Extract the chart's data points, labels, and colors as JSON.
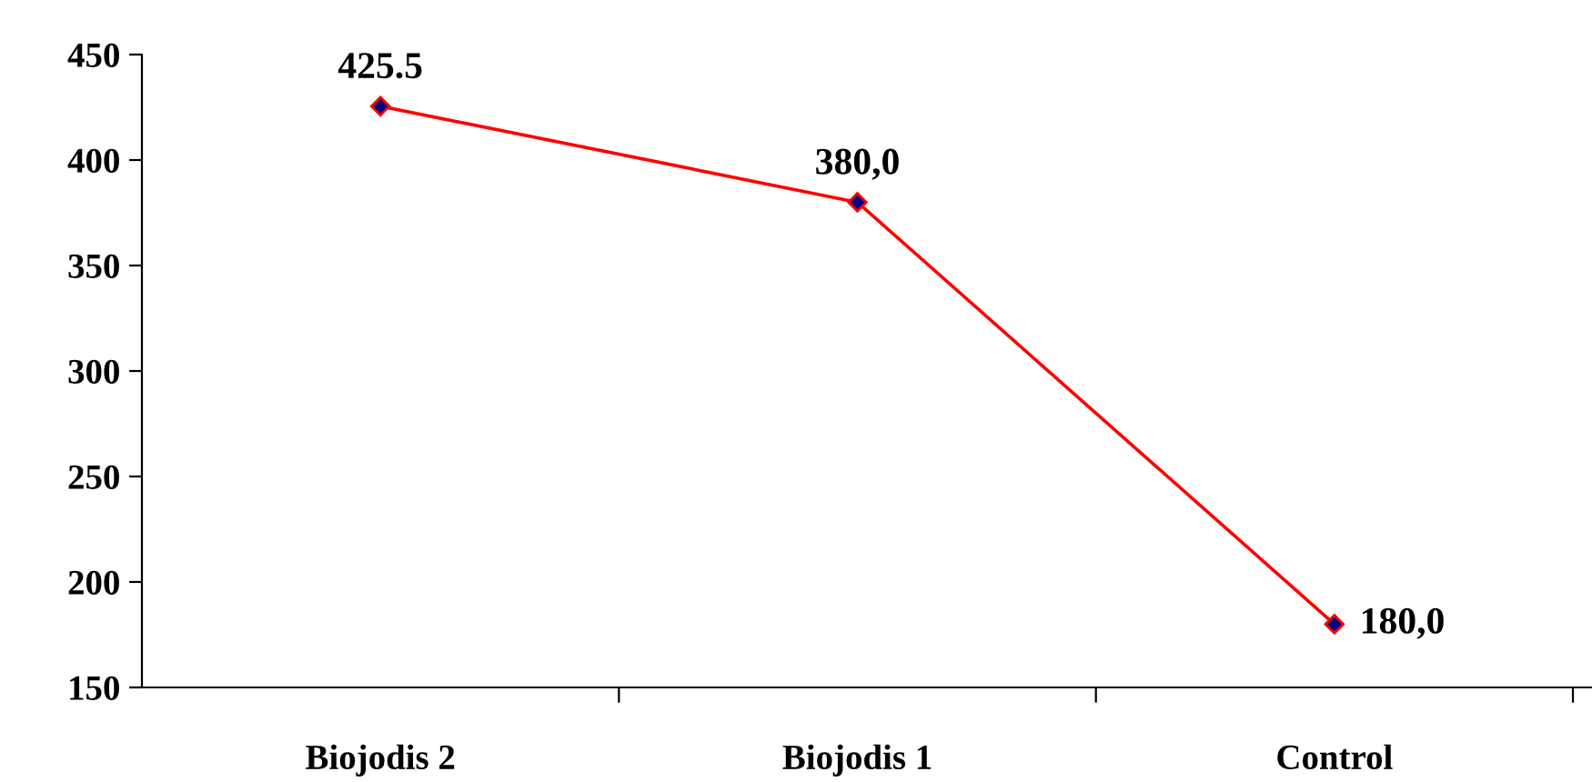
{
  "chart_data": {
    "type": "line",
    "categories": [
      "Biojodis 2",
      "Biojodis 1",
      "Control"
    ],
    "series": [
      {
        "color": "#ff0000",
        "values": [
          425.5,
          380.0,
          180.0
        ],
        "value_labels": [
          "425.5",
          "380,0",
          "180,0"
        ]
      }
    ],
    "ylim": [
      150,
      450
    ],
    "yticks": [
      150,
      200,
      250,
      300,
      350,
      400,
      450
    ],
    "marker": "diamond",
    "grid": false,
    "legend": false
  }
}
